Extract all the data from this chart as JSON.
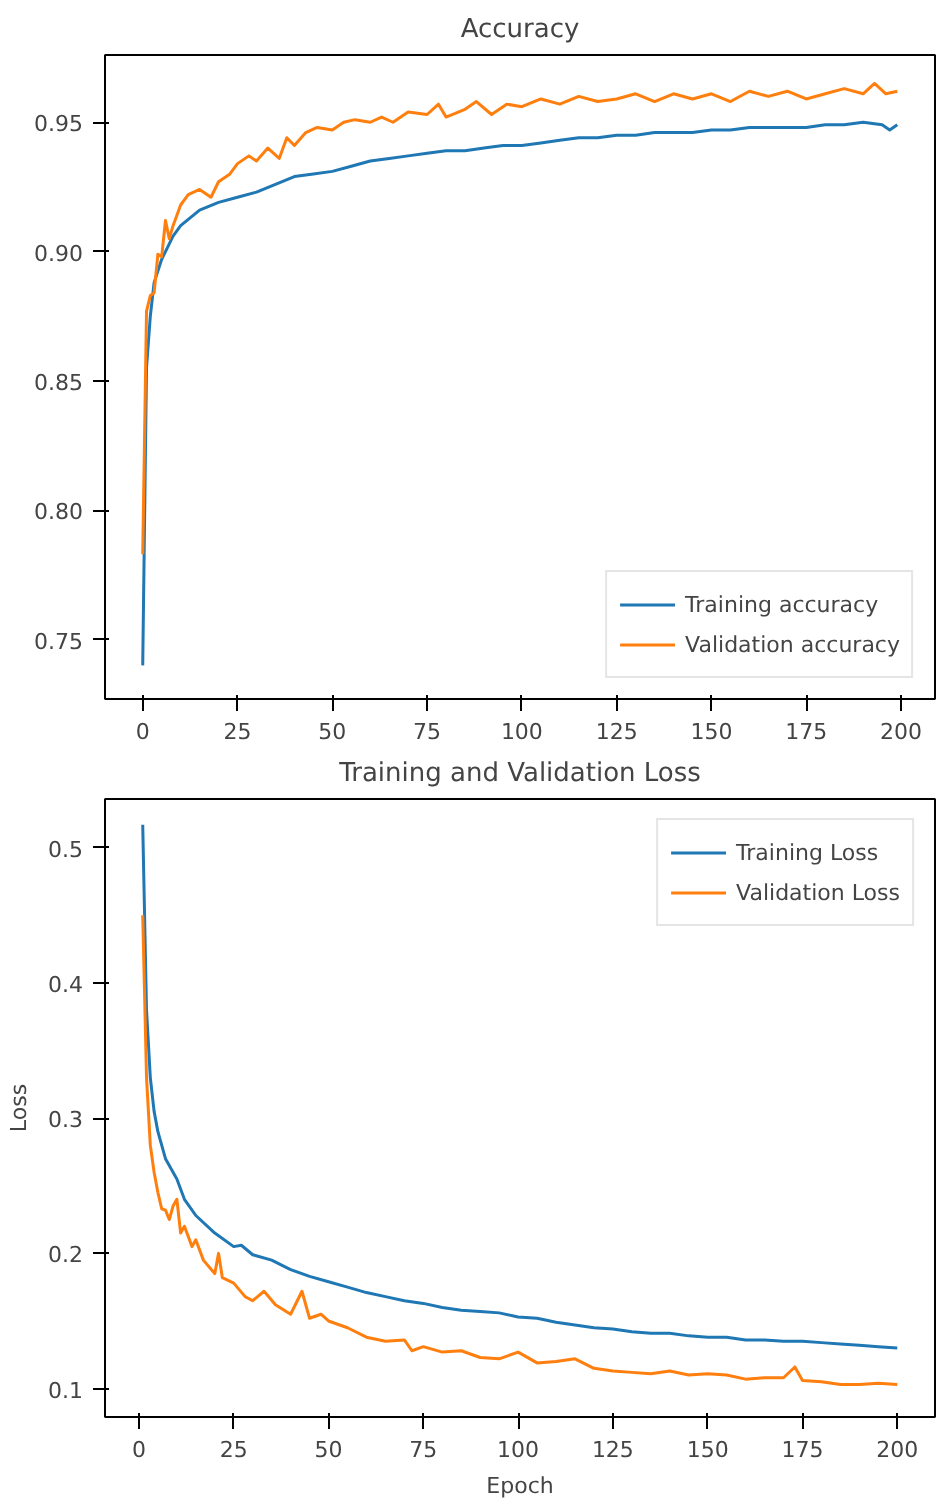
{
  "chart_data": [
    {
      "type": "line",
      "title": "Accuracy",
      "xlim": [
        -9.95,
        208.95
      ],
      "xticks": [
        0,
        25,
        50,
        75,
        100,
        125,
        150,
        175,
        200
      ],
      "ylim": [
        0.727,
        0.976
      ],
      "yticks": [
        {
          "value": 0.75,
          "label": "0.75"
        },
        {
          "value": 0.8,
          "label": "0.80"
        },
        {
          "value": 0.85,
          "label": "0.85"
        },
        {
          "value": 0.9,
          "label": "0.90"
        },
        {
          "value": 0.95,
          "label": "0.95"
        }
      ],
      "grid": false,
      "legend": "bottom right",
      "line_style": "solid",
      "marker": "none",
      "series": [
        {
          "name": "Training accuracy",
          "color": "#1f77b4",
          "x": [
            0,
            1,
            2,
            3,
            5,
            8,
            10,
            15,
            20,
            25,
            30,
            35,
            40,
            45,
            50,
            55,
            60,
            65,
            70,
            75,
            80,
            85,
            90,
            95,
            100,
            105,
            110,
            115,
            120,
            125,
            130,
            135,
            140,
            145,
            150,
            155,
            160,
            165,
            170,
            175,
            180,
            185,
            190,
            195,
            197,
            199
          ],
          "values": [
            0.74,
            0.855,
            0.875,
            0.888,
            0.897,
            0.906,
            0.91,
            0.916,
            0.919,
            0.921,
            0.923,
            0.926,
            0.929,
            0.93,
            0.931,
            0.933,
            0.935,
            0.936,
            0.937,
            0.938,
            0.939,
            0.939,
            0.94,
            0.941,
            0.941,
            0.942,
            0.943,
            0.944,
            0.944,
            0.945,
            0.945,
            0.946,
            0.946,
            0.946,
            0.947,
            0.947,
            0.948,
            0.948,
            0.948,
            0.948,
            0.949,
            0.949,
            0.95,
            0.949,
            0.947,
            0.949
          ]
        },
        {
          "name": "Validation accuracy",
          "color": "#ff7f0e",
          "x": [
            0,
            1,
            2,
            3,
            4,
            5,
            6,
            7,
            8,
            10,
            12,
            15,
            18,
            20,
            23,
            25,
            28,
            30,
            33,
            36,
            38,
            40,
            43,
            46,
            50,
            53,
            56,
            60,
            63,
            66,
            70,
            75,
            78,
            80,
            85,
            88,
            92,
            96,
            100,
            105,
            110,
            115,
            120,
            125,
            130,
            135,
            140,
            145,
            150,
            155,
            160,
            165,
            170,
            175,
            180,
            185,
            190,
            193,
            196,
            199
          ],
          "values": [
            0.783,
            0.877,
            0.883,
            0.884,
            0.899,
            0.898,
            0.912,
            0.905,
            0.91,
            0.918,
            0.922,
            0.924,
            0.921,
            0.927,
            0.93,
            0.934,
            0.937,
            0.935,
            0.94,
            0.936,
            0.944,
            0.941,
            0.946,
            0.948,
            0.947,
            0.95,
            0.951,
            0.95,
            0.952,
            0.95,
            0.954,
            0.953,
            0.957,
            0.952,
            0.955,
            0.958,
            0.953,
            0.957,
            0.956,
            0.959,
            0.957,
            0.96,
            0.958,
            0.959,
            0.961,
            0.958,
            0.961,
            0.959,
            0.961,
            0.958,
            0.962,
            0.96,
            0.962,
            0.959,
            0.961,
            0.963,
            0.961,
            0.965,
            0.961,
            0.962
          ]
        }
      ]
    },
    {
      "type": "line",
      "title": "Training and Validation Loss",
      "xlabel": "Epoch",
      "ylabel": "Loss",
      "xlim": [
        -8.95,
        209.95
      ],
      "xticks": [
        0,
        25,
        50,
        75,
        100,
        125,
        150,
        175,
        200
      ],
      "ylim": [
        0.079,
        0.536
      ],
      "yticks": [
        0.1,
        0.2,
        0.3,
        0.4,
        0.5
      ],
      "grid": false,
      "legend": "top right",
      "line_style": "solid",
      "marker": "none",
      "series": [
        {
          "name": "Training Loss",
          "color": "#1f77b4",
          "x": [
            1,
            2,
            3,
            4,
            5,
            7,
            10,
            12,
            15,
            20,
            25,
            27,
            30,
            35,
            40,
            45,
            50,
            55,
            60,
            65,
            70,
            75,
            80,
            85,
            90,
            95,
            100,
            105,
            110,
            115,
            120,
            125,
            130,
            135,
            140,
            145,
            150,
            155,
            160,
            165,
            170,
            175,
            180,
            185,
            190,
            195,
            200
          ],
          "values": [
            0.517,
            0.38,
            0.33,
            0.305,
            0.29,
            0.27,
            0.255,
            0.24,
            0.228,
            0.215,
            0.205,
            0.206,
            0.199,
            0.195,
            0.188,
            0.183,
            0.179,
            0.175,
            0.171,
            0.168,
            0.165,
            0.163,
            0.16,
            0.158,
            0.157,
            0.156,
            0.153,
            0.152,
            0.149,
            0.147,
            0.145,
            0.144,
            0.142,
            0.141,
            0.141,
            0.139,
            0.138,
            0.138,
            0.136,
            0.136,
            0.135,
            0.135,
            0.134,
            0.133,
            0.132,
            0.131,
            0.13
          ]
        },
        {
          "name": "Validation Loss",
          "color": "#ff7f0e",
          "x": [
            1,
            2,
            3,
            4,
            5,
            6,
            7,
            8,
            9,
            10,
            11,
            12,
            14,
            15,
            17,
            20,
            21,
            22,
            25,
            28,
            30,
            33,
            36,
            40,
            43,
            45,
            48,
            50,
            55,
            60,
            65,
            70,
            72,
            75,
            80,
            85,
            90,
            95,
            100,
            105,
            110,
            115,
            120,
            125,
            130,
            135,
            140,
            145,
            150,
            155,
            160,
            165,
            170,
            173,
            175,
            180,
            185,
            190,
            195,
            200
          ],
          "values": [
            0.45,
            0.33,
            0.28,
            0.26,
            0.245,
            0.233,
            0.232,
            0.225,
            0.235,
            0.24,
            0.215,
            0.22,
            0.205,
            0.21,
            0.195,
            0.185,
            0.2,
            0.182,
            0.178,
            0.168,
            0.165,
            0.172,
            0.162,
            0.155,
            0.172,
            0.152,
            0.155,
            0.15,
            0.145,
            0.138,
            0.135,
            0.136,
            0.128,
            0.131,
            0.127,
            0.128,
            0.123,
            0.122,
            0.127,
            0.119,
            0.12,
            0.122,
            0.115,
            0.113,
            0.112,
            0.111,
            0.113,
            0.11,
            0.111,
            0.11,
            0.107,
            0.108,
            0.108,
            0.116,
            0.106,
            0.105,
            0.103,
            0.103,
            0.104,
            0.103
          ]
        }
      ]
    }
  ]
}
